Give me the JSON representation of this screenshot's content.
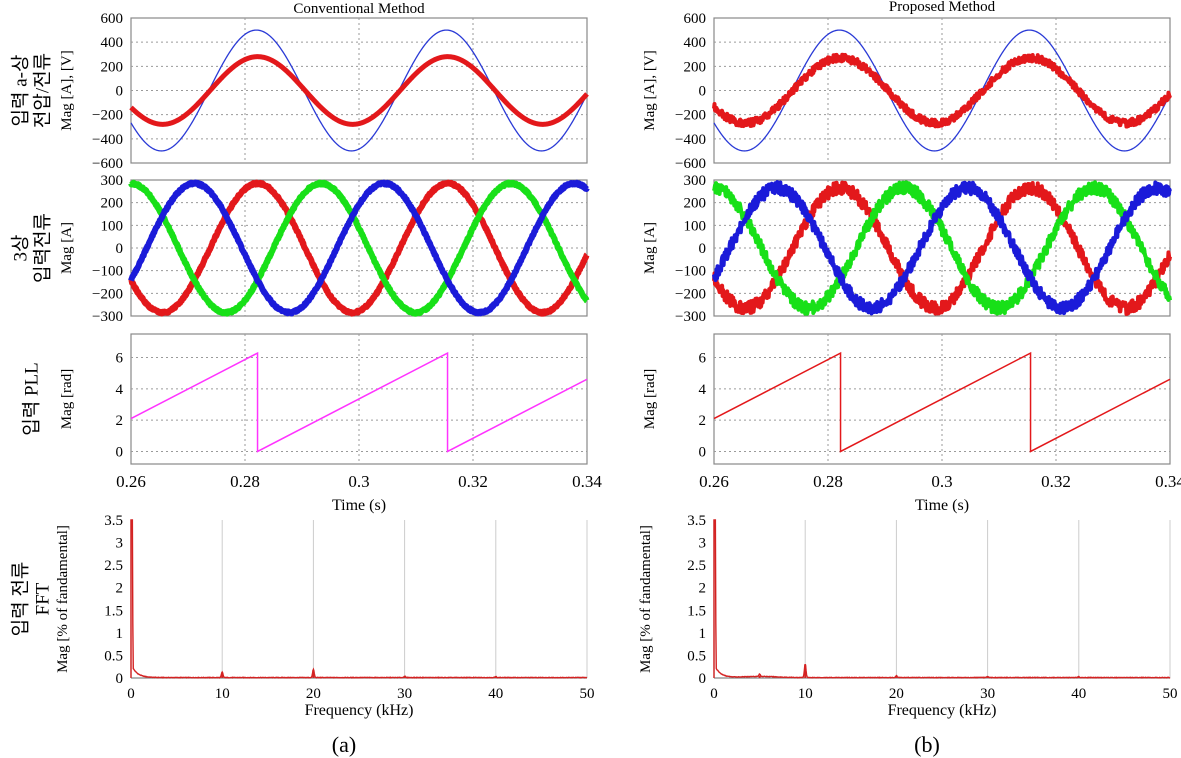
{
  "row_labels": [
    [
      "입력 a-상",
      "전압/전류"
    ],
    [
      "3상",
      "입력전류"
    ],
    [
      "입력 PLL"
    ],
    [
      "입력 전류",
      "FFT"
    ]
  ],
  "panels": [
    {
      "title": "Conventional Method",
      "caption": "(a)",
      "voltage_current": {
        "ylabel": "Mag [A], [V]",
        "yticks": [
          "600",
          "400",
          "200",
          "0",
          "−200",
          "−400",
          "−600"
        ],
        "ylim": [
          -600,
          600
        ],
        "series": [
          {
            "kind": "voltage",
            "amplitude": 500,
            "color": "#2a3ad6"
          },
          {
            "kind": "current",
            "amplitude": 280,
            "color": "#e3181b"
          }
        ]
      },
      "three_phase": {
        "ylabel": "Mag [A]",
        "yticks": [
          "300",
          "200",
          "100",
          "0",
          "−100",
          "−200",
          "−300"
        ],
        "ylim": [
          -300,
          300
        ],
        "amplitude": 285,
        "colors": [
          "#e3181b",
          "#18e018",
          "#1b1bd9"
        ]
      },
      "pll": {
        "ylabel": "Mag [rad]",
        "yticks": [
          "6",
          "4",
          "2",
          "0"
        ],
        "ylim": [
          -0.8,
          7.5
        ],
        "color": "#ff33ff"
      },
      "time_axis": {
        "xlabel": "Time (s)",
        "xticks": [
          "0.26",
          "0.28",
          "0.3",
          "0.32",
          "0.34"
        ],
        "xlim": [
          0.26,
          0.34
        ],
        "fundamental_hz": 30
      },
      "fft": {
        "ylabel": "Mag [% of fandamental]",
        "xlabel": "Frequency (kHz)",
        "yticks": [
          "3.5",
          "3",
          "2.5",
          "2",
          "1.5",
          "1",
          "0.5",
          "0"
        ],
        "xticks": [
          "0",
          "10",
          "20",
          "30",
          "40",
          "50"
        ],
        "xlim": [
          0,
          50
        ],
        "ylim": [
          0,
          3.5
        ],
        "color": "#d42222",
        "peaks": [
          {
            "freq_khz": 10,
            "mag": 0.12
          },
          {
            "freq_khz": 20,
            "mag": 0.18
          },
          {
            "freq_khz": 30,
            "mag": 0.03
          },
          {
            "freq_khz": 40,
            "mag": 0.02
          }
        ]
      }
    },
    {
      "title": "Proposed Method",
      "caption": "(b)",
      "voltage_current": {
        "ylabel": "Mag [A], [V]",
        "yticks": [
          "600",
          "400",
          "200",
          "0",
          "−200",
          "−400",
          "−600"
        ],
        "ylim": [
          -600,
          600
        ],
        "series": [
          {
            "kind": "voltage",
            "amplitude": 500,
            "color": "#2a3ad6"
          },
          {
            "kind": "current",
            "amplitude": 270,
            "color": "#e3181b"
          }
        ]
      },
      "three_phase": {
        "ylabel": "Mag [A]",
        "yticks": [
          "300",
          "200",
          "100",
          "0",
          "−100",
          "−200",
          "−300"
        ],
        "ylim": [
          -300,
          300
        ],
        "amplitude": 265,
        "colors": [
          "#e3181b",
          "#18e018",
          "#1b1bd9"
        ]
      },
      "pll": {
        "ylabel": "Mag [rad]",
        "yticks": [
          "6",
          "4",
          "2",
          "0"
        ],
        "ylim": [
          -0.8,
          7.5
        ],
        "color": "#e3181b"
      },
      "time_axis": {
        "xlabel": "Time (s)",
        "xticks": [
          "0.26",
          "0.28",
          "0.3",
          "0.32",
          "0.34"
        ],
        "xlim": [
          0.26,
          0.34
        ],
        "fundamental_hz": 30
      },
      "fft": {
        "ylabel": "Mag [% of fandamental]",
        "xlabel": "Frequency (kHz)",
        "yticks": [
          "3.5",
          "3",
          "2.5",
          "2",
          "1.5",
          "1",
          "0.5",
          "0"
        ],
        "xticks": [
          "0",
          "10",
          "20",
          "30",
          "40",
          "50"
        ],
        "xlim": [
          0,
          50
        ],
        "ylim": [
          0,
          3.5
        ],
        "color": "#d42222",
        "peaks": [
          {
            "freq_khz": 5,
            "mag": 0.05
          },
          {
            "freq_khz": 10,
            "mag": 0.3
          },
          {
            "freq_khz": 20,
            "mag": 0.04
          },
          {
            "freq_khz": 30,
            "mag": 0.02
          },
          {
            "freq_khz": 40,
            "mag": 0.02
          }
        ]
      }
    }
  ]
}
